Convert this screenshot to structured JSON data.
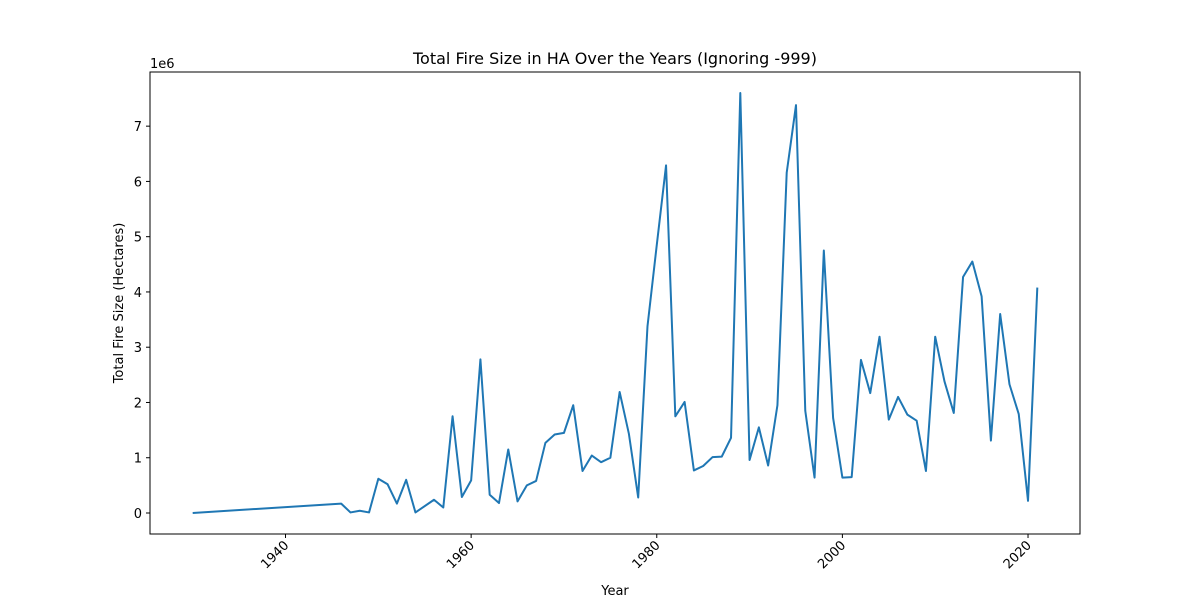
{
  "chart_data": {
    "type": "line",
    "title": "Total Fire Size in HA Over the Years (Ignoring -999)",
    "xlabel": "Year",
    "ylabel": "Total Fire Size (Hectares)",
    "y_offset_label": "1e6",
    "xlim": [
      1925.4,
      2025.6
    ],
    "ylim": [
      -0.38,
      7.98
    ],
    "x_ticks": [
      1940,
      1960,
      1980,
      2000,
      2020
    ],
    "y_ticks": [
      0,
      1,
      2,
      3,
      4,
      5,
      6,
      7
    ],
    "x_tick_rotation": 45,
    "grid": false,
    "legend": "none",
    "color": "#1f77b4",
    "series": [
      {
        "x": [
          1930,
          1946,
          1947,
          1948,
          1949,
          1950,
          1951,
          1952,
          1953,
          1954,
          1956,
          1957,
          1958,
          1959,
          1960,
          1961,
          1962,
          1963,
          1964,
          1965,
          1966,
          1967,
          1968,
          1969,
          1970,
          1971,
          1972,
          1973,
          1974,
          1975,
          1976,
          1977,
          1978,
          1979,
          1980,
          1981,
          1982,
          1983,
          1984,
          1985,
          1986,
          1987,
          1988,
          1989,
          1990,
          1991,
          1992,
          1993,
          1994,
          1995,
          1996,
          1997,
          1998,
          1999,
          2000,
          2001,
          2002,
          2003,
          2004,
          2005,
          2006,
          2007,
          2008,
          2009,
          2010,
          2011,
          2012,
          2013,
          2014,
          2015,
          2016,
          2017,
          2018,
          2019,
          2020,
          2021
        ],
        "y": [
          0.0,
          0.17,
          0.01,
          0.04,
          0.01,
          0.62,
          0.52,
          0.17,
          0.6,
          0.01,
          0.24,
          0.1,
          1.75,
          0.29,
          0.59,
          2.78,
          0.33,
          0.18,
          1.15,
          0.21,
          0.5,
          0.58,
          1.27,
          1.42,
          1.45,
          1.95,
          0.76,
          1.04,
          0.92,
          1.0,
          2.19,
          1.43,
          0.28,
          3.38,
          4.85,
          6.29,
          1.75,
          2.01,
          0.77,
          0.85,
          1.01,
          1.02,
          1.36,
          7.6,
          0.96,
          1.55,
          0.86,
          1.95,
          6.16,
          7.38,
          1.85,
          0.64,
          4.75,
          1.72,
          0.64,
          0.65,
          2.77,
          2.17,
          3.19,
          1.69,
          2.1,
          1.78,
          1.67,
          0.76,
          3.19,
          2.38,
          1.81,
          4.27,
          4.55,
          3.92,
          1.31,
          3.6,
          2.33,
          1.79,
          0.22,
          4.08
        ]
      }
    ]
  }
}
